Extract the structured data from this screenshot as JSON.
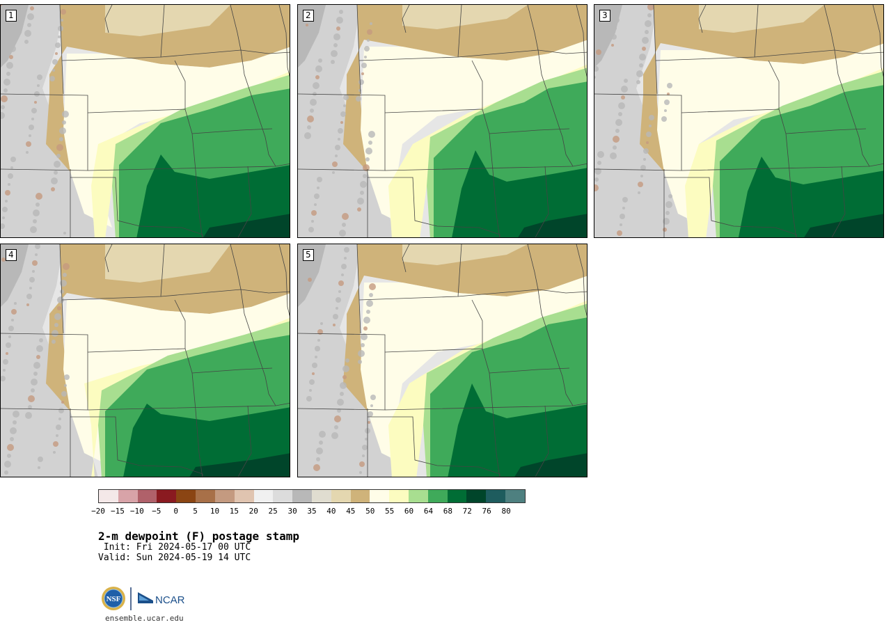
{
  "panels": [
    {
      "id": "1",
      "label": "1"
    },
    {
      "id": "2",
      "label": "2"
    },
    {
      "id": "3",
      "label": "3"
    },
    {
      "id": "4",
      "label": "4"
    },
    {
      "id": "5",
      "label": "5"
    }
  ],
  "colorbar": {
    "colors": [
      "#f4e8e8",
      "#d8a3a8",
      "#b0616a",
      "#8a1a20",
      "#8b4513",
      "#a87048",
      "#c49a80",
      "#e0c4b0",
      "#f0f0f0",
      "#dcdcdc",
      "#b8b8b8",
      "#e0ddd0",
      "#e4d7b0",
      "#cfb37a",
      "#fffde8",
      "#fcfcc0",
      "#a8de90",
      "#3faa5a",
      "#006d35",
      "#00452a",
      "#1e5c5e",
      "#4e8080"
    ],
    "tick_labels": [
      "-20",
      "-15",
      "-10",
      "-5",
      "0",
      "5",
      "10",
      "15",
      "20",
      "25",
      "30",
      "35",
      "40",
      "45",
      "50",
      "55",
      "60",
      "64",
      "68",
      "72",
      "76",
      "80"
    ]
  },
  "header": {
    "title": "2-m dewpoint (F) postage stamp",
    "init": " Init: Fri 2024-05-17 00 UTC",
    "valid": "Valid: Sun 2024-05-19 14 UTC"
  },
  "logos": {
    "nsf": "NSF",
    "ncar": "NCAR"
  },
  "footer": {
    "website": "ensemble.ucar.edu"
  }
}
